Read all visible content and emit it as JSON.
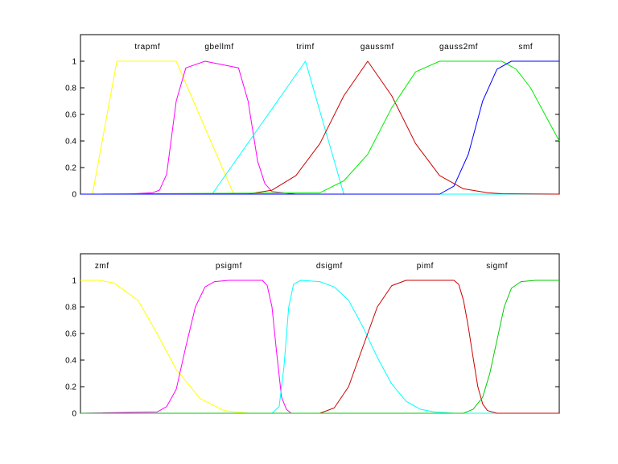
{
  "chart_data": [
    {
      "type": "line",
      "title": "",
      "xlabel": "",
      "ylabel": "",
      "xlim": [
        0,
        100
      ],
      "ylim": [
        0,
        1.2
      ],
      "yticks": [
        "0",
        "0.2",
        "0.4",
        "0.6",
        "0.8",
        "1"
      ],
      "ytick_values": [
        0,
        0.2,
        0.4,
        0.6,
        0.8,
        1
      ],
      "grid": false,
      "series": [
        {
          "name": "trapmf",
          "color": "#ffff00",
          "label_x": 14,
          "x": [
            0,
            2.5,
            7.6,
            20,
            32,
            100
          ],
          "y": [
            0,
            0,
            1,
            1,
            0,
            0
          ]
        },
        {
          "name": "gbellmf",
          "color": "#ff00ff",
          "label_x": 29,
          "x": [
            0,
            10,
            15,
            16.5,
            18,
            20,
            22,
            26,
            33,
            35,
            37,
            38.5,
            40,
            45,
            100
          ],
          "y": [
            0,
            0,
            0.01,
            0.03,
            0.15,
            0.7,
            0.95,
            1,
            0.95,
            0.7,
            0.25,
            0.08,
            0.02,
            0,
            0
          ]
        },
        {
          "name": "trimf",
          "color": "#00ffff",
          "label_x": 47,
          "x": [
            0,
            27.5,
            47,
            55,
            100
          ],
          "y": [
            0,
            0,
            1,
            0,
            0
          ]
        },
        {
          "name": "gaussmf",
          "color": "#cc0000",
          "label_x": 62,
          "x": [
            0,
            35,
            40,
            45,
            50,
            55,
            60,
            65,
            70,
            75,
            80,
            85,
            88,
            100
          ],
          "y": [
            0,
            0.002,
            0.03,
            0.14,
            0.38,
            0.74,
            1,
            0.74,
            0.38,
            0.14,
            0.04,
            0.01,
            0.003,
            0
          ]
        },
        {
          "name": "gauss2mf",
          "color": "#00ee00",
          "label_x": 79,
          "x": [
            0,
            50,
            55,
            60,
            65,
            70,
            75,
            88,
            91,
            94,
            97,
            100
          ],
          "y": [
            0,
            0.01,
            0.1,
            0.3,
            0.65,
            0.92,
            1,
            1,
            0.94,
            0.8,
            0.6,
            0.4
          ]
        },
        {
          "name": "smf",
          "color": "#0000ff",
          "label_x": 93,
          "x": [
            0,
            75,
            78,
            81,
            84,
            87,
            90,
            100
          ],
          "y": [
            0,
            0,
            0.06,
            0.3,
            0.7,
            0.94,
            1,
            1
          ]
        }
      ]
    },
    {
      "type": "line",
      "title": "",
      "xlabel": "",
      "ylabel": "",
      "xlim": [
        0,
        100
      ],
      "ylim": [
        0,
        1.2
      ],
      "yticks": [
        "0",
        "0.2",
        "0.4",
        "0.6",
        "0.8",
        "1"
      ],
      "ytick_values": [
        0,
        0.2,
        0.4,
        0.6,
        0.8,
        1
      ],
      "grid": false,
      "series": [
        {
          "name": "zmf",
          "color": "#ffff00",
          "label_x": 4.5,
          "x": [
            0,
            4,
            7,
            12,
            16,
            20,
            25,
            30,
            35,
            100
          ],
          "y": [
            1,
            1,
            0.98,
            0.85,
            0.6,
            0.33,
            0.11,
            0.02,
            0,
            0
          ]
        },
        {
          "name": "psigmf",
          "color": "#ff00ff",
          "label_x": 31,
          "x": [
            0,
            16,
            18,
            20,
            22,
            24,
            26,
            28,
            31,
            38,
            39,
            40,
            41,
            42,
            43,
            44,
            100
          ],
          "y": [
            0,
            0.01,
            0.05,
            0.18,
            0.5,
            0.8,
            0.95,
            0.99,
            1,
            1,
            0.96,
            0.8,
            0.45,
            0.12,
            0.03,
            0,
            0
          ]
        },
        {
          "name": "dsigmf",
          "color": "#00ffff",
          "label_x": 52,
          "x": [
            0,
            40,
            41.5,
            42.5,
            43.5,
            44.5,
            46,
            50,
            53,
            56,
            59,
            62,
            65,
            68,
            71,
            74,
            78,
            100
          ],
          "y": [
            0,
            0,
            0.05,
            0.35,
            0.8,
            0.97,
            1,
            0.99,
            0.95,
            0.85,
            0.65,
            0.42,
            0.22,
            0.09,
            0.03,
            0.01,
            0,
            0
          ]
        },
        {
          "name": "pimf",
          "color": "#cc0000",
          "label_x": 72,
          "x": [
            0,
            50,
            53,
            56,
            59,
            62,
            65,
            68,
            71,
            78,
            79,
            80,
            81,
            82,
            83,
            84,
            85,
            87,
            100
          ],
          "y": [
            0,
            0,
            0.04,
            0.2,
            0.5,
            0.8,
            0.96,
            1,
            1,
            1,
            0.97,
            0.85,
            0.65,
            0.42,
            0.2,
            0.07,
            0.02,
            0,
            0
          ]
        },
        {
          "name": "sigmf",
          "color": "#00cc00",
          "label_x": 87,
          "x": [
            0,
            80,
            82,
            84,
            85.5,
            87,
            88.5,
            90,
            92,
            95,
            100
          ],
          "y": [
            0,
            0,
            0.03,
            0.12,
            0.3,
            0.55,
            0.8,
            0.94,
            0.99,
            1,
            1
          ]
        }
      ]
    }
  ]
}
